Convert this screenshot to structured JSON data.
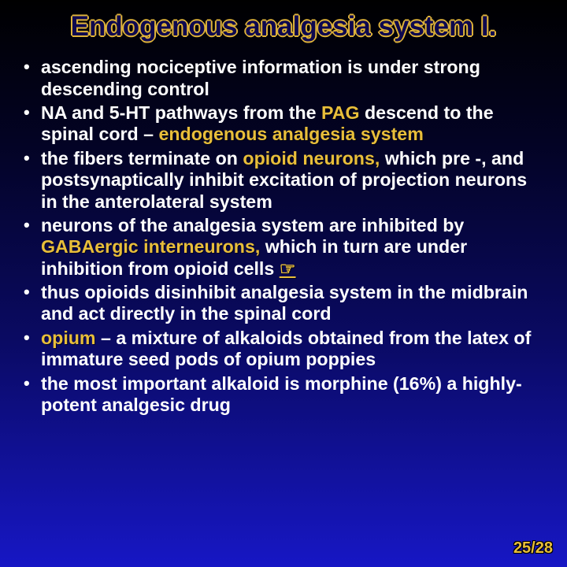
{
  "title": "Endogenous analgesia system I.",
  "bullets": [
    {
      "parts": [
        {
          "t": "ascending nociceptive information is under strong descending control"
        }
      ]
    },
    {
      "parts": [
        {
          "t": "NA and 5-HT pathways from the "
        },
        {
          "t": "PAG",
          "hl": true
        },
        {
          "t": " descend to the spinal cord – "
        },
        {
          "t": "endogenous analgesia system",
          "hl": true
        }
      ]
    },
    {
      "parts": [
        {
          "t": "the fibers terminate on "
        },
        {
          "t": "opioid neurons,",
          "hl": true
        },
        {
          "t": " which pre -, and postsynaptically inhibit excitation of projection neurons in the anterolateral system"
        }
      ]
    },
    {
      "parts": [
        {
          "t": "neurons of the analgesia system are inhibited by "
        },
        {
          "t": "GABAergic interneurons,",
          "hl": true
        },
        {
          "t": " which in turn are under inhibition from opioid cells "
        },
        {
          "t": "☞",
          "hl": true,
          "link": true
        }
      ]
    },
    {
      "parts": [
        {
          "t": "thus opioids disinhibit analgesia system in the midbrain and act directly in the spinal cord"
        }
      ]
    },
    {
      "parts": [
        {
          "t": "opium",
          "hl": true
        },
        {
          "t": " – a mixture of alkaloids obtained from the latex of immature seed pods of opium poppies"
        }
      ]
    },
    {
      "parts": [
        {
          "t": "the most important alkaloid is morphine (16%) a highly-potent analgesic drug"
        }
      ]
    }
  ],
  "page": "25/28"
}
